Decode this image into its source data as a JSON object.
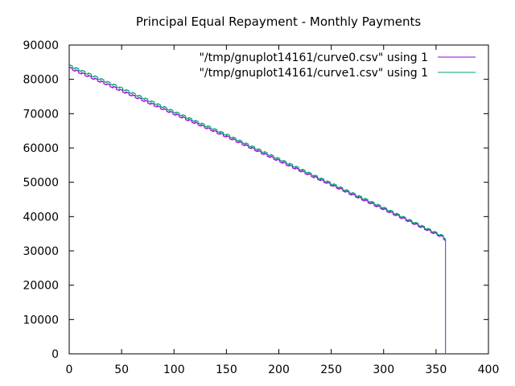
{
  "chart_data": {
    "type": "line",
    "title": "Principal Equal Repayment - Monthly Payments",
    "xlabel": "",
    "ylabel": "",
    "xlim": [
      0,
      400
    ],
    "ylim": [
      0,
      90000
    ],
    "x_ticks": [
      0,
      50,
      100,
      150,
      200,
      250,
      300,
      350,
      400
    ],
    "y_ticks": [
      0,
      10000,
      20000,
      30000,
      40000,
      50000,
      60000,
      70000,
      80000,
      90000
    ],
    "grid": false,
    "legend_position": "top-right",
    "series": [
      {
        "name": "\"/tmp/gnuplot14161/curve0.csv\" using 1",
        "color": "#9400d3",
        "style": "steps",
        "points": [
          [
            0,
            83300
          ],
          [
            50,
            76600
          ],
          [
            100,
            69900
          ],
          [
            150,
            63300
          ],
          [
            200,
            56200
          ],
          [
            250,
            49200
          ],
          [
            300,
            42100
          ],
          [
            356,
            34000
          ],
          [
            359,
            33000
          ]
        ],
        "drop_to_zero_at": 359
      },
      {
        "name": "\"/tmp/gnuplot14161/curve1.csv\" using 1",
        "color": "#009e73",
        "style": "steps",
        "points": [
          [
            0,
            84000
          ],
          [
            50,
            77300
          ],
          [
            100,
            70500
          ],
          [
            150,
            63800
          ],
          [
            200,
            56700
          ],
          [
            250,
            49600
          ],
          [
            300,
            42500
          ],
          [
            356,
            34300
          ],
          [
            359,
            33500
          ]
        ],
        "drop_to_zero_at": 359
      }
    ]
  }
}
